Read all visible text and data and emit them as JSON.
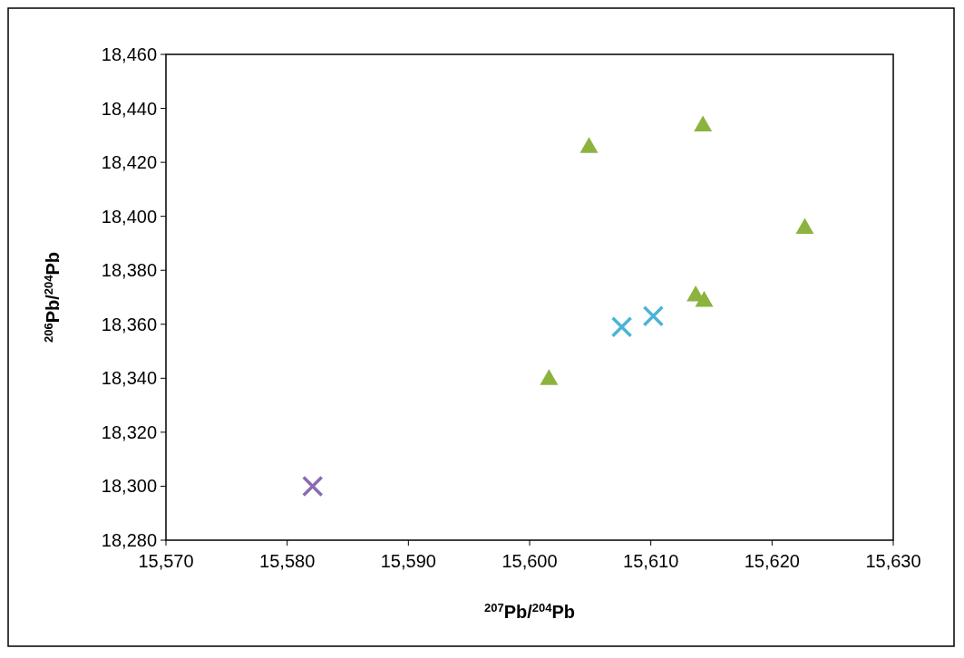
{
  "chart_data": {
    "type": "scatter",
    "xlabel": "$^{207}$Pb/$^{204}$Pb",
    "ylabel": "$^{206}$Pb/$^{204}$Pb",
    "xlim": [
      15570,
      15630
    ],
    "ylim": [
      18280,
      18460
    ],
    "xticks": [
      {
        "value": 15570,
        "label": "15,570"
      },
      {
        "value": 15580,
        "label": "15,580"
      },
      {
        "value": 15590,
        "label": "15,590"
      },
      {
        "value": 15600,
        "label": "15,600"
      },
      {
        "value": 15610,
        "label": "15,610"
      },
      {
        "value": 15620,
        "label": "15,620"
      },
      {
        "value": 15630,
        "label": "15,630"
      }
    ],
    "yticks": [
      {
        "value": 18280,
        "label": "18,280"
      },
      {
        "value": 18300,
        "label": "18,300"
      },
      {
        "value": 18320,
        "label": "18,320"
      },
      {
        "value": 18340,
        "label": "18,340"
      },
      {
        "value": 18360,
        "label": "18,360"
      },
      {
        "value": 18380,
        "label": "18,380"
      },
      {
        "value": 18400,
        "label": "18,400"
      },
      {
        "value": 18420,
        "label": "18,420"
      },
      {
        "value": 18440,
        "label": "18,440"
      },
      {
        "value": 18460,
        "label": "18,460"
      }
    ],
    "grid": false,
    "series": [
      {
        "color": "#8db33f",
        "marker": "triangle",
        "x": [
          15601.6,
          15604.9,
          15614.3,
          15622.7,
          15613.7,
          15614.4
        ],
        "values": [
          18340,
          18426,
          18434,
          18396,
          18371,
          18369
        ]
      },
      {
        "color": "#4bb4d6",
        "marker": "cross",
        "x": [
          15607.6,
          15610.2
        ],
        "values": [
          18359,
          18363
        ]
      },
      {
        "color": "#8a6bb0",
        "marker": "cross",
        "x": [
          15582.1
        ],
        "values": [
          18300
        ]
      }
    ]
  }
}
